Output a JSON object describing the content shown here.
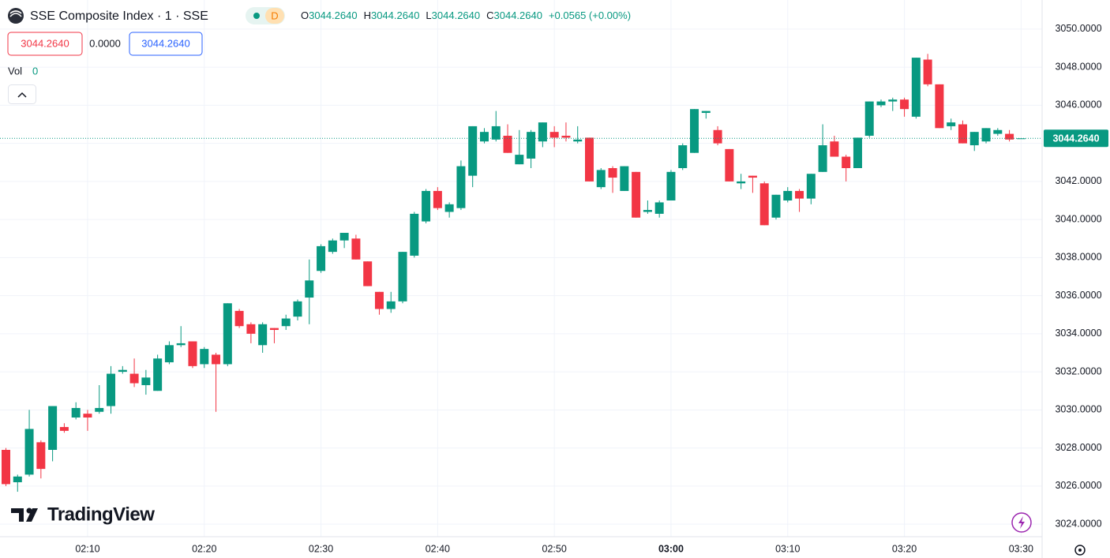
{
  "chart_data": {
    "type": "candlestick",
    "title": "SSE Composite Index · 1 · SSE",
    "interval_badge": "D",
    "ohlc_legend": [
      {
        "key": "O",
        "value": "3044.2640"
      },
      {
        "key": "H",
        "value": "3044.2640"
      },
      {
        "key": "L",
        "value": "3044.2640"
      },
      {
        "key": "C",
        "value": "3044.2640"
      }
    ],
    "change": "+0.0565 (+0.00%)",
    "price_boxes": [
      "3044.2640",
      "0.0000",
      "3044.2640"
    ],
    "volume": {
      "label": "Vol",
      "value": "0"
    },
    "logo": "TradingView",
    "up_color": "#089981",
    "down_color": "#f23645",
    "grid": true,
    "x": [
      null,
      null,
      null,
      null,
      null,
      null,
      null,
      "02:10",
      null,
      null,
      null,
      null,
      null,
      null,
      null,
      null,
      null,
      "02:20",
      null,
      null,
      null,
      null,
      null,
      null,
      null,
      null,
      null,
      "02:30",
      null,
      null,
      null,
      null,
      null,
      null,
      null,
      null,
      null,
      "02:40",
      null,
      null,
      null,
      null,
      null,
      null,
      null,
      null,
      null,
      "02:50",
      null,
      null,
      null,
      null,
      null,
      null,
      null,
      null,
      null,
      "03:00",
      null,
      null,
      null,
      null,
      null,
      null,
      null,
      null,
      null,
      "03:10",
      null,
      null,
      null,
      null,
      null,
      null,
      null,
      null,
      null,
      "03:20",
      null,
      null,
      null,
      null,
      null,
      null,
      null,
      null,
      null,
      "03:30"
    ],
    "bold_x_index": 57,
    "open": [
      3027.9,
      3026.2,
      3026.6,
      3028.3,
      3027.9,
      3029.1,
      3029.6,
      3029.8,
      3029.9,
      3030.2,
      3032.0,
      3031.9,
      3031.3,
      3031.0,
      3032.5,
      3033.4,
      3033.6,
      3032.4,
      3032.9,
      3032.4,
      3035.2,
      3034.5,
      3033.4,
      3034.3,
      3034.4,
      3034.9,
      3035.9,
      3037.3,
      3038.3,
      3038.9,
      3039.0,
      3037.8,
      3036.2,
      3035.3,
      3035.7,
      3038.1,
      3039.9,
      3041.5,
      3040.4,
      3040.6,
      3042.3,
      3044.1,
      3044.2,
      3044.4,
      3042.9,
      3043.2,
      3044.1,
      3044.6,
      3044.4,
      3044.1,
      3044.3,
      3041.7,
      3042.7,
      3041.5,
      3042.5,
      3040.4,
      3040.3,
      3041.0,
      3042.7,
      3043.5,
      3045.6,
      3044.7,
      3043.7,
      3041.9,
      3042.3,
      3041.9,
      3040.1,
      3041.0,
      3041.5,
      3041.1,
      3042.5,
      3044.1,
      3043.3,
      3042.7,
      3044.4,
      3046.0,
      3046.2,
      3046.3,
      3045.4,
      3048.4,
      3047.1,
      3044.9,
      3045.0,
      3043.9,
      3044.1,
      3044.5,
      3044.5,
      3044.264
    ],
    "high": [
      3028.0,
      3026.6,
      3030.0,
      3028.4,
      3030.2,
      3029.3,
      3030.4,
      3030.0,
      3031.3,
      3032.3,
      3032.3,
      3032.7,
      3032.1,
      3032.9,
      3033.6,
      3034.4,
      3033.6,
      3033.3,
      3033.0,
      3035.6,
      3035.3,
      3034.6,
      3034.6,
      3034.3,
      3035.0,
      3035.8,
      3037.9,
      3038.7,
      3039.0,
      3039.3,
      3039.2,
      3037.8,
      3036.2,
      3036.2,
      3038.3,
      3040.4,
      3041.6,
      3041.7,
      3040.9,
      3043.1,
      3044.9,
      3044.8,
      3045.7,
      3045.0,
      3044.7,
      3044.7,
      3045.1,
      3044.9,
      3045.1,
      3044.9,
      3044.3,
      3042.7,
      3042.8,
      3042.8,
      3042.5,
      3041.0,
      3041.0,
      3042.6,
      3044.0,
      3045.8,
      3045.7,
      3044.9,
      3043.7,
      3042.4,
      3042.3,
      3042.0,
      3041.3,
      3041.7,
      3041.6,
      3042.4,
      3045.0,
      3044.4,
      3043.4,
      3044.3,
      3046.2,
      3046.3,
      3046.4,
      3046.4,
      3048.5,
      3048.7,
      3047.1,
      3045.3,
      3045.2,
      3044.6,
      3044.8,
      3044.8,
      3044.7,
      3044.264
    ],
    "low": [
      3026.0,
      3025.7,
      3026.5,
      3026.4,
      3027.3,
      3028.8,
      3029.5,
      3028.9,
      3029.8,
      3029.8,
      3031.9,
      3031.2,
      3030.8,
      3031.0,
      3032.4,
      3033.3,
      3032.2,
      3032.2,
      3029.9,
      3032.3,
      3034.3,
      3033.5,
      3033.0,
      3033.5,
      3034.2,
      3034.7,
      3034.5,
      3037.2,
      3038.2,
      3038.5,
      3037.9,
      3036.5,
      3035.0,
      3035.1,
      3035.6,
      3038.0,
      3039.8,
      3040.5,
      3040.1,
      3040.5,
      3041.7,
      3044.0,
      3044.1,
      3043.5,
      3042.9,
      3042.7,
      3043.8,
      3043.8,
      3044.1,
      3044.0,
      3042.0,
      3041.6,
      3041.4,
      3041.5,
      3040.1,
      3040.3,
      3040.1,
      3041.0,
      3042.6,
      3043.5,
      3045.3,
      3043.9,
      3042.0,
      3041.6,
      3041.4,
      3039.7,
      3040.0,
      3040.9,
      3040.4,
      3040.8,
      3042.5,
      3043.3,
      3042.0,
      3042.7,
      3044.3,
      3045.9,
      3045.7,
      3045.4,
      3045.3,
      3047.0,
      3044.8,
      3044.7,
      3044.0,
      3043.6,
      3044.0,
      3044.4,
      3044.1,
      3044.264
    ],
    "close": [
      3026.1,
      3026.5,
      3029.0,
      3026.9,
      3030.2,
      3028.9,
      3030.1,
      3029.6,
      3030.1,
      3031.9,
      3032.1,
      3031.4,
      3031.7,
      3032.7,
      3033.4,
      3033.5,
      3032.3,
      3033.2,
      3032.4,
      3035.6,
      3034.4,
      3034.0,
      3034.5,
      3034.2,
      3034.8,
      3035.7,
      3036.8,
      3038.6,
      3038.9,
      3039.3,
      3037.9,
      3036.5,
      3035.3,
      3035.7,
      3038.3,
      3040.3,
      3041.5,
      3040.6,
      3040.8,
      3042.8,
      3044.9,
      3044.6,
      3044.9,
      3043.5,
      3043.4,
      3044.6,
      3045.1,
      3044.3,
      3044.3,
      3044.2,
      3042.0,
      3042.6,
      3042.2,
      3042.8,
      3040.1,
      3040.5,
      3040.9,
      3042.5,
      3043.9,
      3045.8,
      3045.7,
      3044.0,
      3042.0,
      3042.0,
      3042.2,
      3039.7,
      3041.3,
      3041.5,
      3041.1,
      3042.4,
      3043.9,
      3043.3,
      3042.7,
      3044.3,
      3046.2,
      3046.2,
      3046.3,
      3045.8,
      3048.5,
      3047.1,
      3044.8,
      3045.1,
      3044.0,
      3044.6,
      3044.8,
      3044.7,
      3044.2,
      3044.264
    ],
    "ylim": [
      3023.34,
      3051.53
    ],
    "yticks": [
      {
        "value": 3024,
        "label": "3024.0000"
      },
      {
        "value": 3026,
        "label": "3026.0000"
      },
      {
        "value": 3028,
        "label": "3028.0000"
      },
      {
        "value": 3030,
        "label": "3030.0000"
      },
      {
        "value": 3032,
        "label": "3032.0000"
      },
      {
        "value": 3034,
        "label": "3034.0000"
      },
      {
        "value": 3036,
        "label": "3036.0000"
      },
      {
        "value": 3038,
        "label": "3038.0000"
      },
      {
        "value": 3040,
        "label": "3040.0000"
      },
      {
        "value": 3042,
        "label": "3042.0000"
      },
      {
        "value": 3044,
        "label": "3044.0000"
      },
      {
        "value": 3046,
        "label": "3046.0000"
      },
      {
        "value": 3048,
        "label": "3048.0000"
      },
      {
        "value": 3050,
        "label": "3050.0000"
      }
    ],
    "last_price": {
      "value": 3044.264,
      "label": "3044.2640"
    }
  }
}
